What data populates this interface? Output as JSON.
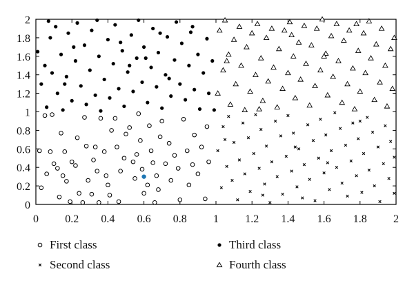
{
  "chart_data": {
    "type": "scatter",
    "title": "",
    "xlabel": "",
    "ylabel": "",
    "xlim": [
      0,
      2
    ],
    "ylim": [
      0,
      2
    ],
    "xticks": [
      "0",
      "0.2",
      "0.4",
      "0.6",
      "0.8",
      "1",
      "1.2",
      "1.4",
      "1.6",
      "1.8",
      "2"
    ],
    "yticks": [
      "0",
      "0.2",
      "0.4",
      "0.6",
      "0.8",
      "1",
      "1.2",
      "1.4",
      "1.6",
      "1.8",
      "2"
    ],
    "grid": false,
    "legend_position": "bottom",
    "highlight_color": "#1f77b4",
    "highlight_point": [
      0.6,
      0.3
    ],
    "series": [
      {
        "name": "First class",
        "marker": "open-circle",
        "points": [
          [
            0.02,
            0.58
          ],
          [
            0.05,
            0.96
          ],
          [
            0.06,
            0.33
          ],
          [
            0.08,
            0.57
          ],
          [
            0.09,
            0.97
          ],
          [
            0.1,
            0.44
          ],
          [
            0.12,
            0.39
          ],
          [
            0.13,
            0.08
          ],
          [
            0.15,
            0.31
          ],
          [
            0.16,
            0.57
          ],
          [
            0.17,
            0.25
          ],
          [
            0.19,
            0.03
          ],
          [
            0.2,
            0.46
          ],
          [
            0.22,
            0.42
          ],
          [
            0.24,
            0.12
          ],
          [
            0.26,
            0.02
          ],
          [
            0.27,
            0.94
          ],
          [
            0.28,
            0.63
          ],
          [
            0.29,
            0.26
          ],
          [
            0.31,
            0.11
          ],
          [
            0.33,
            0.62
          ],
          [
            0.34,
            0.36
          ],
          [
            0.35,
            0.02
          ],
          [
            0.36,
            0.93
          ],
          [
            0.38,
            0.57
          ],
          [
            0.39,
            0.31
          ],
          [
            0.4,
            0.21
          ],
          [
            0.42,
            0.8
          ],
          [
            0.44,
            0.93
          ],
          [
            0.45,
            0.62
          ],
          [
            0.46,
            0.03
          ],
          [
            0.47,
            0.36
          ],
          [
            0.49,
            0.5
          ],
          [
            0.5,
            0.76
          ],
          [
            0.52,
            0.83
          ],
          [
            0.54,
            0.46
          ],
          [
            0.55,
            0.28
          ],
          [
            0.56,
            0.54
          ],
          [
            0.58,
            0.69
          ],
          [
            0.59,
            0.38
          ],
          [
            0.6,
            0.12
          ],
          [
            0.62,
            0.21
          ],
          [
            0.63,
            0.85
          ],
          [
            0.64,
            0.58
          ],
          [
            0.65,
            0.45
          ],
          [
            0.67,
            0.31
          ],
          [
            0.68,
            0.16
          ],
          [
            0.69,
            0.73
          ],
          [
            0.7,
            0.9
          ],
          [
            0.72,
            0.44
          ],
          [
            0.74,
            0.66
          ],
          [
            0.75,
            0.26
          ],
          [
            0.77,
            0.53
          ],
          [
            0.79,
            0.39
          ],
          [
            0.8,
            0.05
          ],
          [
            0.82,
            0.92
          ],
          [
            0.84,
            0.58
          ],
          [
            0.85,
            0.21
          ],
          [
            0.87,
            0.43
          ],
          [
            0.88,
            0.75
          ],
          [
            0.9,
            0.33
          ],
          [
            0.92,
            0.62
          ],
          [
            0.94,
            0.06
          ],
          [
            0.95,
            0.84
          ],
          [
            0.96,
            0.46
          ],
          [
            0.03,
            0.18
          ],
          [
            0.14,
            0.77
          ],
          [
            0.23,
            0.72
          ],
          [
            0.32,
            0.48
          ],
          [
            0.41,
            0.1
          ],
          [
            0.57,
            0.98
          ],
          [
            0.66,
            0.02
          ]
        ]
      },
      {
        "name": "Second class",
        "marker": "x",
        "points": [
          [
            1.01,
            0.58
          ],
          [
            1.03,
            0.18
          ],
          [
            1.04,
            0.84
          ],
          [
            1.06,
            0.41
          ],
          [
            1.07,
            0.95
          ],
          [
            1.09,
            0.26
          ],
          [
            1.1,
            0.67
          ],
          [
            1.12,
            0.05
          ],
          [
            1.13,
            0.48
          ],
          [
            1.15,
            0.88
          ],
          [
            1.16,
            0.33
          ],
          [
            1.18,
            0.72
          ],
          [
            1.19,
            0.14
          ],
          [
            1.21,
            0.55
          ],
          [
            1.22,
            0.97
          ],
          [
            1.24,
            0.39
          ],
          [
            1.25,
            0.81
          ],
          [
            1.27,
            0.22
          ],
          [
            1.28,
            0.63
          ],
          [
            1.3,
            0.02
          ],
          [
            1.31,
            0.46
          ],
          [
            1.33,
            0.9
          ],
          [
            1.34,
            0.3
          ],
          [
            1.36,
            0.74
          ],
          [
            1.37,
            0.11
          ],
          [
            1.39,
            0.52
          ],
          [
            1.4,
            0.96
          ],
          [
            1.42,
            0.36
          ],
          [
            1.43,
            0.77
          ],
          [
            1.45,
            0.19
          ],
          [
            1.46,
            0.6
          ],
          [
            1.48,
            0.07
          ],
          [
            1.49,
            0.43
          ],
          [
            1.51,
            0.86
          ],
          [
            1.52,
            0.27
          ],
          [
            1.54,
            0.69
          ],
          [
            1.55,
            0.04
          ],
          [
            1.57,
            0.5
          ],
          [
            1.58,
            0.92
          ],
          [
            1.6,
            0.34
          ],
          [
            1.61,
            0.75
          ],
          [
            1.63,
            0.16
          ],
          [
            1.64,
            0.58
          ],
          [
            1.66,
            0.99
          ],
          [
            1.67,
            0.4
          ],
          [
            1.69,
            0.82
          ],
          [
            1.7,
            0.23
          ],
          [
            1.72,
            0.64
          ],
          [
            1.73,
            0.09
          ],
          [
            1.75,
            0.47
          ],
          [
            1.76,
            0.88
          ],
          [
            1.78,
            0.31
          ],
          [
            1.79,
            0.71
          ],
          [
            1.81,
            0.13
          ],
          [
            1.82,
            0.55
          ],
          [
            1.84,
            0.94
          ],
          [
            1.85,
            0.37
          ],
          [
            1.87,
            0.78
          ],
          [
            1.88,
            0.2
          ],
          [
            1.9,
            0.62
          ],
          [
            1.91,
            0.03
          ],
          [
            1.93,
            0.44
          ],
          [
            1.94,
            0.85
          ],
          [
            1.96,
            0.28
          ],
          [
            1.97,
            0.68
          ],
          [
            1.99,
            0.12
          ],
          [
            1.99,
            0.51
          ],
          [
            1.05,
            0.7
          ],
          [
            1.26,
            0.1
          ],
          [
            1.44,
            0.62
          ],
          [
            1.62,
            0.45
          ],
          [
            1.8,
            0.9
          ]
        ]
      },
      {
        "name": "Third class",
        "marker": "filled-circle",
        "points": [
          [
            0.01,
            1.65
          ],
          [
            0.03,
            1.3
          ],
          [
            0.05,
            1.5
          ],
          [
            0.06,
            1.05
          ],
          [
            0.08,
            1.8
          ],
          [
            0.09,
            1.42
          ],
          [
            0.11,
            1.92
          ],
          [
            0.12,
            1.2
          ],
          [
            0.14,
            1.62
          ],
          [
            0.15,
            1.02
          ],
          [
            0.17,
            1.38
          ],
          [
            0.18,
            1.85
          ],
          [
            0.2,
            1.12
          ],
          [
            0.22,
            1.55
          ],
          [
            0.23,
            1.96
          ],
          [
            0.25,
            1.28
          ],
          [
            0.27,
            1.72
          ],
          [
            0.28,
            1.08
          ],
          [
            0.3,
            1.45
          ],
          [
            0.31,
            1.88
          ],
          [
            0.33,
            1.18
          ],
          [
            0.35,
            1.6
          ],
          [
            0.36,
            1.01
          ],
          [
            0.38,
            1.35
          ],
          [
            0.4,
            1.78
          ],
          [
            0.41,
            1.15
          ],
          [
            0.43,
            1.52
          ],
          [
            0.44,
            1.94
          ],
          [
            0.46,
            1.25
          ],
          [
            0.48,
            1.66
          ],
          [
            0.49,
            1.06
          ],
          [
            0.51,
            1.43
          ],
          [
            0.53,
            1.83
          ],
          [
            0.54,
            1.22
          ],
          [
            0.56,
            1.58
          ],
          [
            0.57,
            1.99
          ],
          [
            0.59,
            1.32
          ],
          [
            0.6,
            1.7
          ],
          [
            0.62,
            1.1
          ],
          [
            0.64,
            1.48
          ],
          [
            0.65,
            1.9
          ],
          [
            0.67,
            1.27
          ],
          [
            0.68,
            1.64
          ],
          [
            0.7,
            1.04
          ],
          [
            0.72,
            1.4
          ],
          [
            0.73,
            1.81
          ],
          [
            0.75,
            1.17
          ],
          [
            0.77,
            1.56
          ],
          [
            0.78,
            1.97
          ],
          [
            0.8,
            1.3
          ],
          [
            0.81,
            1.74
          ],
          [
            0.83,
            1.13
          ],
          [
            0.85,
            1.5
          ],
          [
            0.86,
            1.86
          ],
          [
            0.88,
            1.24
          ],
          [
            0.9,
            1.62
          ],
          [
            0.91,
            1.03
          ],
          [
            0.93,
            1.42
          ],
          [
            0.95,
            1.79
          ],
          [
            0.96,
            1.2
          ],
          [
            0.98,
            1.55
          ],
          [
            0.99,
            1.02
          ],
          [
            0.07,
            1.98
          ],
          [
            0.21,
            1.7
          ],
          [
            0.34,
            1.99
          ],
          [
            0.47,
            1.75
          ],
          [
            0.61,
            1.58
          ],
          [
            0.74,
            1.36
          ],
          [
            0.87,
            1.92
          ],
          [
            0.16,
            1.3
          ],
          [
            0.52,
            1.5
          ],
          [
            0.69,
            1.85
          ]
        ]
      },
      {
        "name": "Fourth class",
        "marker": "open-triangle",
        "points": [
          [
            1.01,
            1.2
          ],
          [
            1.02,
            1.88
          ],
          [
            1.04,
            1.45
          ],
          [
            1.05,
            1.99
          ],
          [
            1.07,
            1.62
          ],
          [
            1.08,
            1.08
          ],
          [
            1.1,
            1.78
          ],
          [
            1.11,
            1.3
          ],
          [
            1.13,
            1.92
          ],
          [
            1.14,
            1.5
          ],
          [
            1.16,
            1.02
          ],
          [
            1.17,
            1.7
          ],
          [
            1.19,
            1.22
          ],
          [
            1.2,
            1.85
          ],
          [
            1.22,
            1.4
          ],
          [
            1.23,
            1.95
          ],
          [
            1.25,
            1.58
          ],
          [
            1.26,
            1.12
          ],
          [
            1.28,
            1.8
          ],
          [
            1.29,
            1.33
          ],
          [
            1.31,
            1.9
          ],
          [
            1.32,
            1.48
          ],
          [
            1.34,
            1.05
          ],
          [
            1.35,
            1.68
          ],
          [
            1.37,
            1.25
          ],
          [
            1.38,
            1.88
          ],
          [
            1.4,
            1.42
          ],
          [
            1.41,
            1.97
          ],
          [
            1.43,
            1.6
          ],
          [
            1.44,
            1.15
          ],
          [
            1.46,
            1.75
          ],
          [
            1.47,
            1.35
          ],
          [
            1.49,
            1.93
          ],
          [
            1.5,
            1.52
          ],
          [
            1.52,
            1.07
          ],
          [
            1.53,
            1.72
          ],
          [
            1.55,
            1.28
          ],
          [
            1.56,
            1.9
          ],
          [
            1.58,
            1.45
          ],
          [
            1.59,
            2.0
          ],
          [
            1.61,
            1.63
          ],
          [
            1.62,
            1.18
          ],
          [
            1.64,
            1.82
          ],
          [
            1.65,
            1.38
          ],
          [
            1.67,
            1.95
          ],
          [
            1.68,
            1.55
          ],
          [
            1.7,
            1.1
          ],
          [
            1.71,
            1.77
          ],
          [
            1.73,
            1.3
          ],
          [
            1.74,
            1.88
          ],
          [
            1.76,
            1.47
          ],
          [
            1.77,
            1.03
          ],
          [
            1.79,
            1.66
          ],
          [
            1.8,
            1.22
          ],
          [
            1.82,
            1.85
          ],
          [
            1.83,
            1.42
          ],
          [
            1.85,
            1.98
          ],
          [
            1.86,
            1.58
          ],
          [
            1.88,
            1.13
          ],
          [
            1.89,
            1.73
          ],
          [
            1.91,
            1.32
          ],
          [
            1.92,
            1.9
          ],
          [
            1.94,
            1.5
          ],
          [
            1.95,
            1.06
          ],
          [
            1.97,
            1.68
          ],
          [
            1.98,
            1.25
          ],
          [
            1.99,
            1.8
          ],
          [
            1.06,
            1.55
          ],
          [
            1.24,
            1.03
          ],
          [
            1.42,
            1.83
          ],
          [
            1.6,
            1.6
          ],
          [
            1.78,
            1.95
          ]
        ]
      }
    ]
  }
}
